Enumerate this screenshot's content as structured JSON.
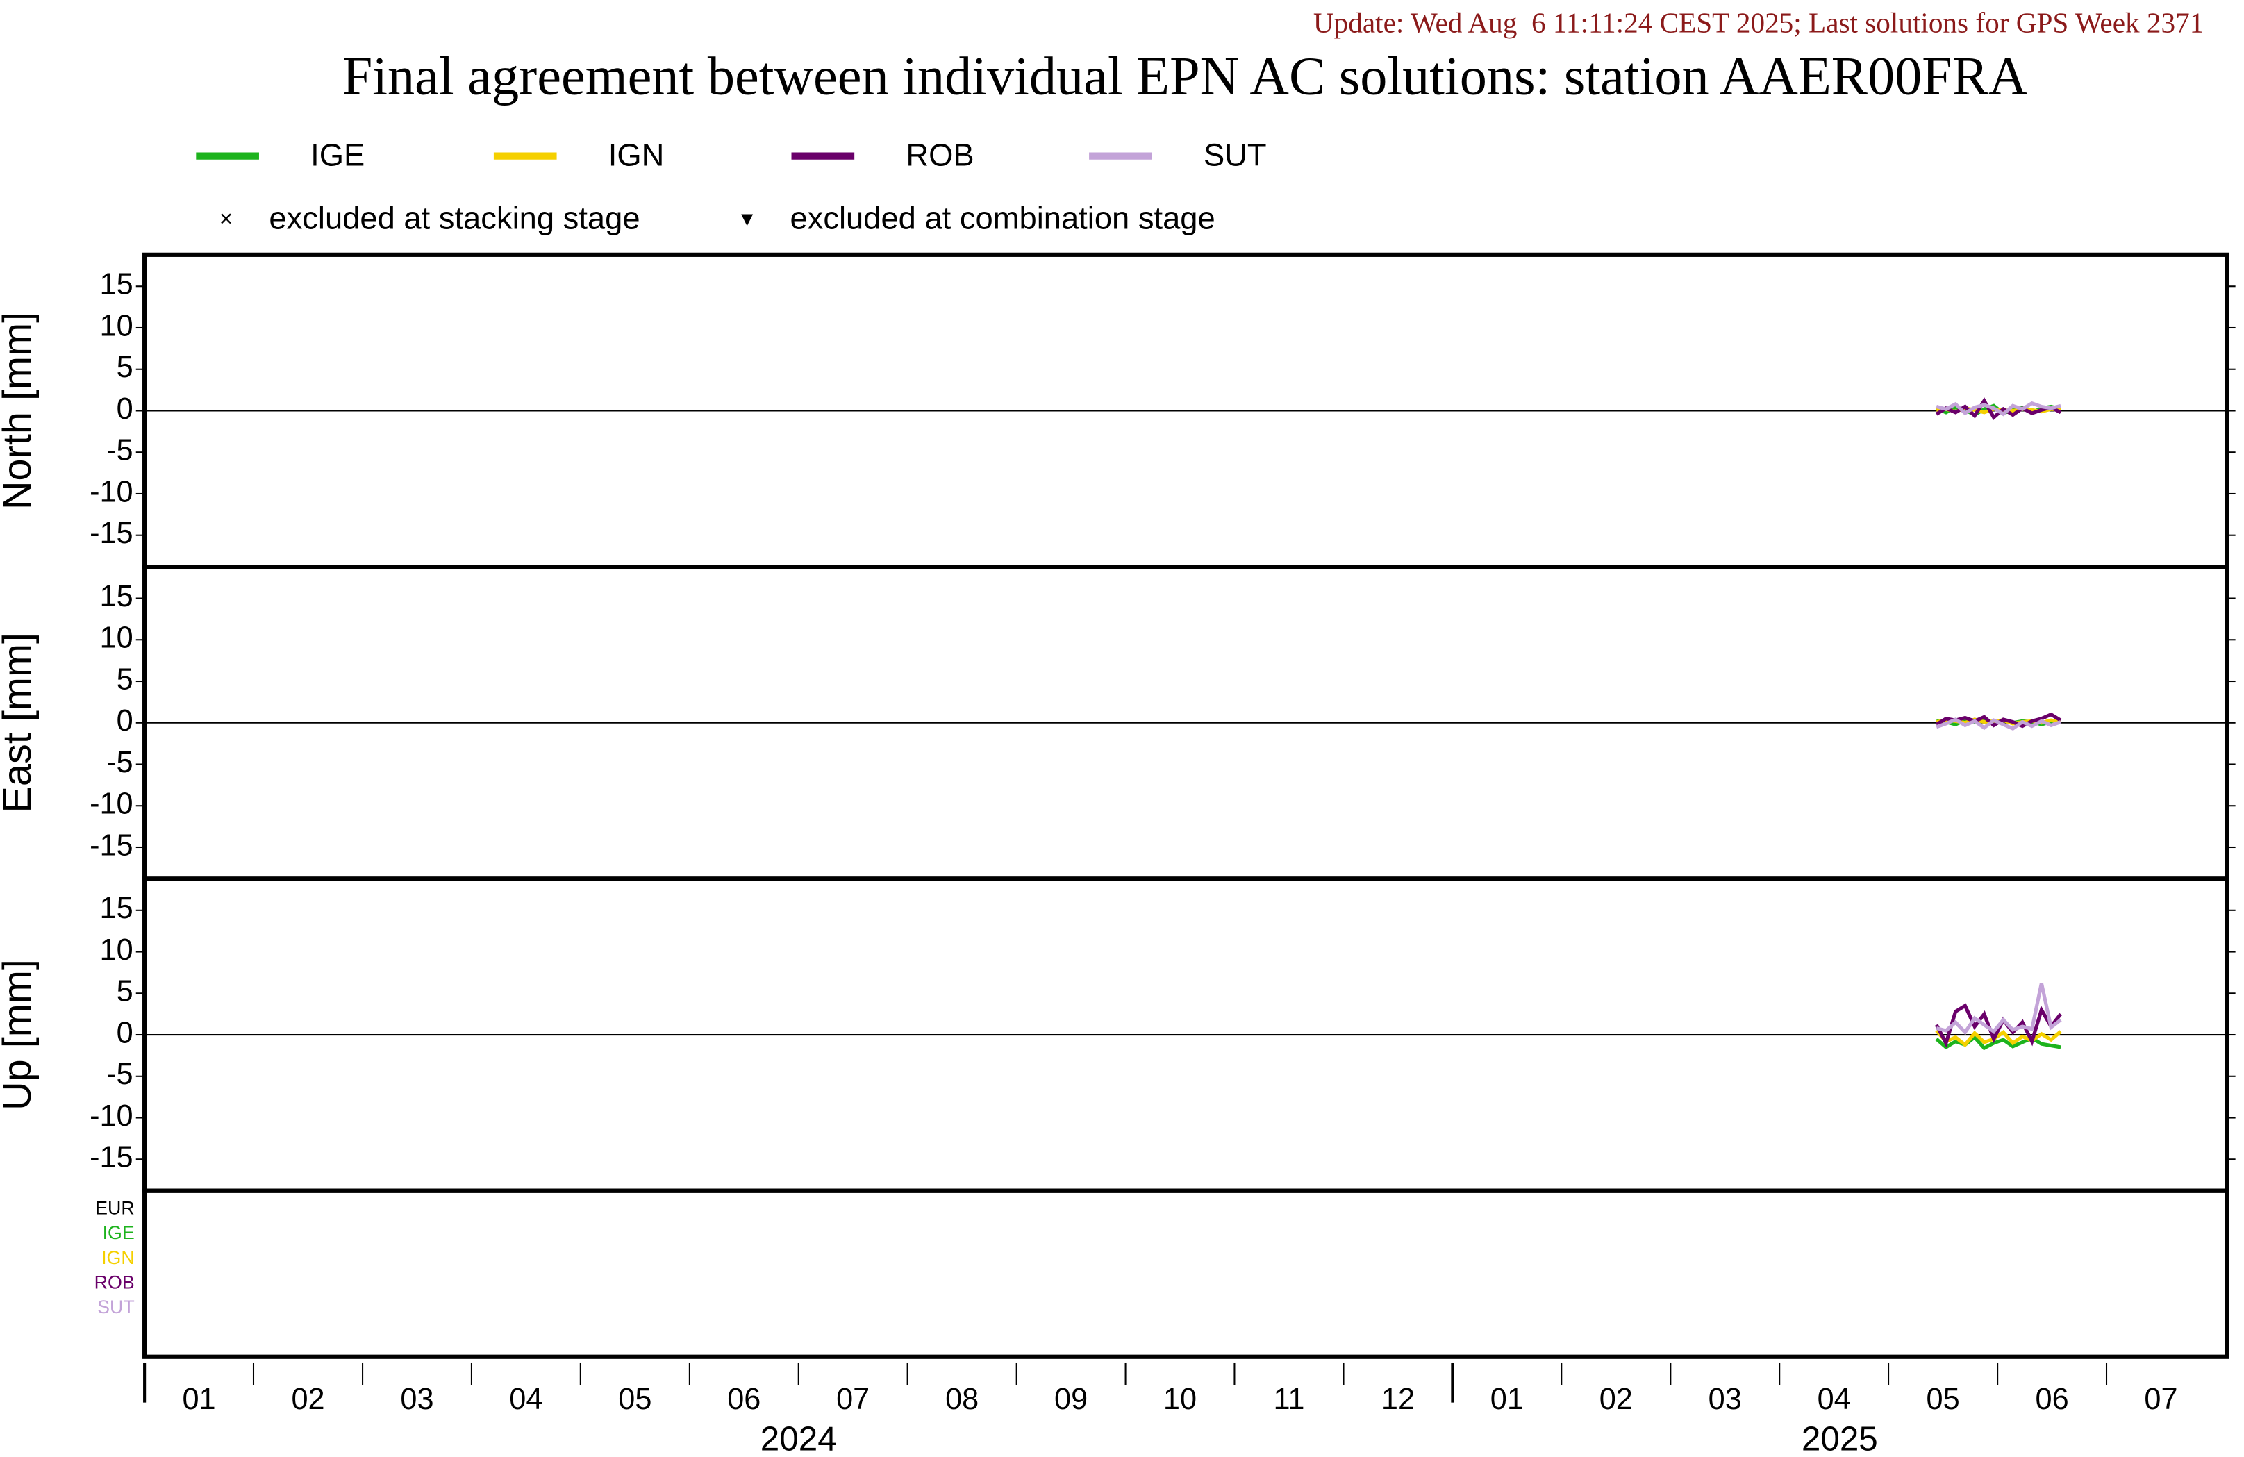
{
  "header": {
    "update": "Update: Wed Aug  6 11:11:24 CEST 2025; Last solutions for GPS Week 2371",
    "title": "Final agreement between individual EPN AC solutions: station AAER00FRA"
  },
  "legend": {
    "stacking": "excluded at stacking stage",
    "combination": "excluded at combination stage"
  },
  "ac_panel": {
    "labels": [
      {
        "text": "EUR",
        "color": "#000000"
      },
      {
        "text": "IGE",
        "color": "#1db31d"
      },
      {
        "text": "IGN",
        "color": "#f5d000"
      },
      {
        "text": "ROB",
        "color": "#6a006a"
      },
      {
        "text": "SUT",
        "color": "#c3a3d8"
      }
    ]
  },
  "chart_data": [
    {
      "type": "line",
      "ylabel": "North [mm]",
      "ylim": [
        -18.8,
        18.8
      ],
      "yticks": [
        -15,
        -10,
        -5,
        0,
        5,
        10,
        15
      ],
      "zero_line": true,
      "x": [
        2025.37,
        2025.3773,
        2025.3846,
        2025.3919,
        2025.3992,
        2025.4065,
        2025.4138,
        2025.4211,
        2025.4284,
        2025.4357,
        2025.443,
        2025.4503,
        2025.4576,
        2025.465
      ],
      "series": [
        {
          "name": "IGE",
          "color": "#1db31d",
          "values": [
            0.3,
            -0.2,
            0.4,
            0.1,
            -0.5,
            0.2,
            0.6,
            -0.3,
            0.1,
            0.4,
            -0.2,
            0.3,
            0.5,
            0.2
          ]
        },
        {
          "name": "IGN",
          "color": "#f5d000",
          "values": [
            0.1,
            0.2,
            -0.1,
            0.3,
            0.1,
            -0.2,
            0.2,
            0.1,
            0.0,
            0.2,
            0.1,
            -0.1,
            0.2,
            0.1
          ]
        },
        {
          "name": "ROB",
          "color": "#6a006a",
          "values": [
            -0.4,
            0.3,
            -0.2,
            0.5,
            -0.6,
            1.2,
            -0.8,
            0.2,
            -0.5,
            0.3,
            -0.3,
            0.1,
            0.4,
            -0.2
          ]
        },
        {
          "name": "SUT",
          "color": "#c3a3d8",
          "values": [
            0.5,
            0.2,
            0.8,
            -0.3,
            0.4,
            0.7,
            0.3,
            -0.4,
            0.6,
            0.2,
            0.9,
            0.5,
            0.3,
            0.6
          ]
        }
      ]
    },
    {
      "type": "line",
      "ylabel": "East [mm]",
      "ylim": [
        -18.8,
        18.8
      ],
      "yticks": [
        -15,
        -10,
        -5,
        0,
        5,
        10,
        15
      ],
      "zero_line": true,
      "x": [
        2025.37,
        2025.3773,
        2025.3846,
        2025.3919,
        2025.3992,
        2025.4065,
        2025.4138,
        2025.4211,
        2025.4284,
        2025.4357,
        2025.443,
        2025.4503,
        2025.4576,
        2025.465
      ],
      "series": [
        {
          "color": "#1db31d",
          "values": [
            0.2,
            0.1,
            -0.2,
            0.3,
            0.1,
            0.2,
            -0.1,
            0.3,
            0.0,
            0.2,
            0.1,
            -0.2,
            0.1,
            0.2
          ]
        },
        {
          "color": "#f5d000",
          "values": [
            0.1,
            0.3,
            0.2,
            0.0,
            0.4,
            0.1,
            0.2,
            0.3,
            -0.1,
            0.1,
            0.2,
            0.0,
            0.3,
            0.1
          ]
        },
        {
          "color": "#6a006a",
          "values": [
            -0.2,
            0.5,
            0.3,
            0.6,
            0.2,
            0.7,
            -0.3,
            0.4,
            0.1,
            -0.4,
            0.2,
            0.5,
            1.0,
            0.3
          ]
        },
        {
          "color": "#c3a3d8",
          "values": [
            -0.5,
            -0.1,
            0.4,
            -0.3,
            0.2,
            -0.6,
            0.3,
            -0.2,
            -0.7,
            0.1,
            -0.4,
            0.2,
            -0.3,
            0.1
          ]
        }
      ]
    },
    {
      "type": "line",
      "ylabel": "Up [mm]",
      "ylim": [
        -18.8,
        18.8
      ],
      "yticks": [
        -15,
        -10,
        -5,
        0,
        5,
        10,
        15
      ],
      "zero_line": true,
      "x": [
        2025.37,
        2025.3773,
        2025.3846,
        2025.3919,
        2025.3992,
        2025.4065,
        2025.4138,
        2025.4211,
        2025.4284,
        2025.4357,
        2025.443,
        2025.4503,
        2025.4576,
        2025.465
      ],
      "xlim": [
        2024,
        2025.592
      ],
      "xyears": [
        2024,
        2025
      ],
      "xticks": [
        {
          "value": 2024,
          "label": "01"
        },
        {
          "value": 2024.0833,
          "label": "02"
        },
        {
          "value": 2024.1667,
          "label": "03"
        },
        {
          "value": 2024.25,
          "label": "04"
        },
        {
          "value": 2024.3333,
          "label": "05"
        },
        {
          "value": 2024.4167,
          "label": "06"
        },
        {
          "value": 2024.5,
          "label": "07"
        },
        {
          "value": 2024.5833,
          "label": "08"
        },
        {
          "value": 2024.6667,
          "label": "09"
        },
        {
          "value": 2024.75,
          "label": "10"
        },
        {
          "value": 2024.8333,
          "label": "11"
        },
        {
          "value": 2024.9167,
          "label": "12"
        },
        {
          "value": 2025,
          "label": "01"
        },
        {
          "value": 2025.0833,
          "label": "02"
        },
        {
          "value": 2025.1667,
          "label": "03"
        },
        {
          "value": 2025.25,
          "label": "04"
        },
        {
          "value": 2025.3333,
          "label": "05"
        },
        {
          "value": 2025.4167,
          "label": "06"
        },
        {
          "value": 2025.5,
          "label": "07"
        }
      ],
      "series": [
        {
          "color": "#1db31d",
          "values": [
            -0.5,
            -1.5,
            -0.8,
            -1.2,
            -0.3,
            -1.6,
            -1.0,
            -0.6,
            -1.4,
            -0.9,
            -0.4,
            -1.1,
            -1.3,
            -1.5
          ]
        },
        {
          "color": "#f5d000",
          "values": [
            0.5,
            -0.8,
            -0.3,
            -1.2,
            0.2,
            -0.9,
            -0.5,
            0.3,
            -1.0,
            -0.2,
            -0.7,
            0.1,
            -0.6,
            0.4
          ]
        },
        {
          "color": "#6a006a",
          "values": [
            1.2,
            -1.0,
            2.8,
            3.5,
            1.0,
            2.5,
            -0.5,
            1.8,
            0.3,
            1.5,
            -0.8,
            3.0,
            1.0,
            2.5
          ]
        },
        {
          "color": "#c3a3d8",
          "values": [
            0.8,
            0.5,
            1.5,
            0.3,
            2.0,
            1.2,
            0.4,
            1.8,
            0.6,
            1.0,
            0.7,
            6.2,
            0.9,
            1.8
          ]
        }
      ]
    }
  ]
}
